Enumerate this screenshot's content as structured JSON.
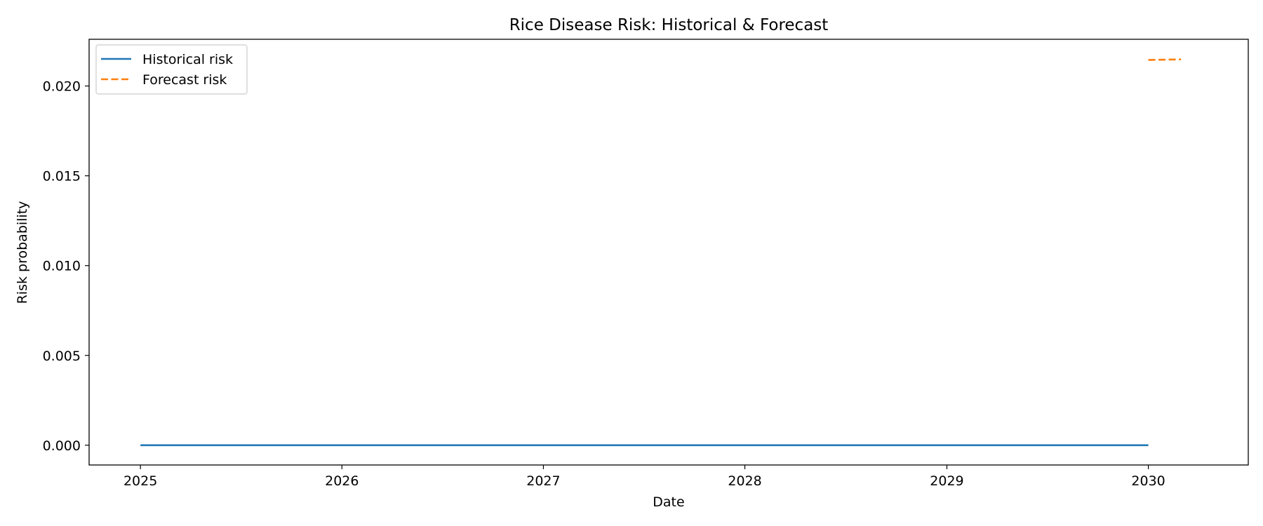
{
  "chart_data": {
    "type": "line",
    "title": "Rice Disease Risk: Historical & Forecast",
    "xlabel": "Date",
    "ylabel": "Risk probability",
    "x_ticks": [
      "2025",
      "2026",
      "2027",
      "2028",
      "2029",
      "2030"
    ],
    "y_ticks": [
      "0.000",
      "0.005",
      "0.010",
      "0.015",
      "0.020"
    ],
    "xlim": [
      "2024-09-30",
      "2030-07-01"
    ],
    "ylim": [
      -0.0011,
      0.0226
    ],
    "grid": false,
    "legend": "upper left",
    "series": [
      {
        "name": "Historical risk",
        "color": "#1f77b4",
        "style": "solid",
        "x": [
          "2025-01-01",
          "2030-01-01"
        ],
        "values": [
          0.0,
          0.0
        ]
      },
      {
        "name": "Forecast risk",
        "color": "#ff7f0e",
        "style": "dashed",
        "x": [
          "2030-01-01",
          "2030-03-01"
        ],
        "values": [
          0.02145,
          0.02148
        ]
      }
    ]
  }
}
